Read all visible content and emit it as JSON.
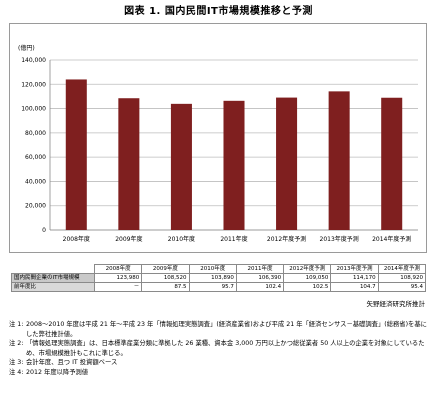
{
  "figure": {
    "title": "図表 1.  国内民間IT市場規模推移と予測",
    "unit": "(億円)",
    "source": "矢野経済研究所推計"
  },
  "chart_data": {
    "type": "bar",
    "categories": [
      "2008年度",
      "2009年度",
      "2010年度",
      "2011年度",
      "2012年度予測",
      "2013年度予測",
      "2014年度予測"
    ],
    "values": [
      123980,
      108520,
      103890,
      106390,
      109050,
      114170,
      108920
    ],
    "ylim": [
      0,
      140000
    ],
    "yticks": [
      "0",
      "20,000",
      "40,000",
      "60,000",
      "80,000",
      "100,000",
      "120,000",
      "140,000"
    ],
    "ylabel": "(億円)",
    "bar_color": "#7f1f1f",
    "grid": true
  },
  "table": {
    "headers": [
      "",
      "2008年度",
      "2009年度",
      "2010年度",
      "2011年度",
      "2012年度予測",
      "2013年度予測",
      "2014年度予測"
    ],
    "rows": [
      {
        "label": "国内民間企業のIT市場規模",
        "cells": [
          "123,980",
          "108,520",
          "103,890",
          "106,390",
          "109,050",
          "114,170",
          "108,920"
        ]
      },
      {
        "label": "前年度比",
        "cells": [
          "－",
          "87.5",
          "95.7",
          "102.4",
          "102.5",
          "104.7",
          "95.4"
        ]
      }
    ]
  },
  "notes": [
    {
      "label": "注 1:",
      "text": "2008～2010 年度は平成 21 年～平成 23 年「情報処理実態調査」(経済産業省)および平成 21 年「経済センサス－基礎調査」(総務省)を基にした弊社推計値。"
    },
    {
      "label": "注 2:",
      "text": "「情報処理実態調査」は、日本標準産業分類に準拠した 26 業種、資本金 3,000 万円以上かつ総従業者 50 人以上の企業を対象にしているため、市場規模推計もこれに準じる。"
    },
    {
      "label": "注 3:",
      "text": "会計年度、且つ IT 投資額ベース"
    },
    {
      "label": "注 4:",
      "text": "2012 年度以降予測値"
    }
  ]
}
